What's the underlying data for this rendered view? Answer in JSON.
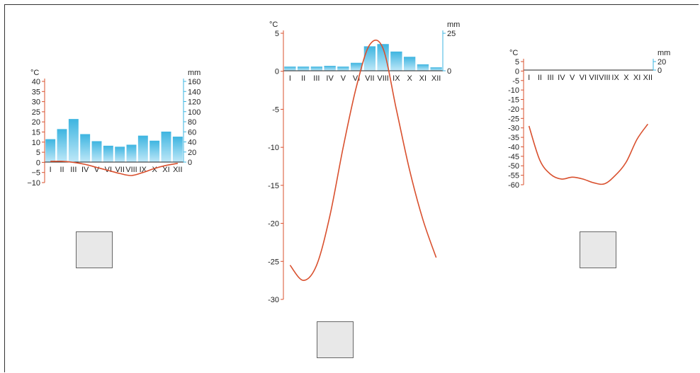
{
  "chart_data": [
    {
      "type": "bar+line",
      "temp_unit": "°C",
      "precip_unit": "mm",
      "months": [
        "I",
        "II",
        "III",
        "IV",
        "V",
        "VI",
        "VII",
        "VIII",
        "IX",
        "X",
        "XI",
        "XII"
      ],
      "temp_ticks": [
        40,
        35,
        30,
        25,
        20,
        15,
        10,
        5,
        0,
        -5,
        -10
      ],
      "temp_tick_labels": [
        "40",
        "35",
        "30",
        "25",
        "20",
        "15",
        "10",
        "5",
        "0",
        "−5",
        "−10"
      ],
      "precip_ticks": [
        160,
        140,
        120,
        100,
        80,
        60,
        40,
        20,
        0
      ],
      "precip_tick_labels": [
        "160",
        "140",
        "120",
        "100",
        "80",
        "60",
        "40",
        "20",
        "0"
      ],
      "ylim_temp": [
        -10,
        40
      ],
      "ylim_precip": [
        0,
        160
      ],
      "precip": [
        46,
        66,
        86,
        56,
        42,
        33,
        31,
        35,
        53,
        43,
        61,
        51
      ],
      "temp": [
        0.5,
        0.5,
        0,
        -1,
        -2.5,
        -4,
        -5.5,
        -6.5,
        -5,
        -3,
        -1.5,
        -0.5
      ],
      "temp_color": "#d9502e",
      "bar_color": "#3cb4e0"
    },
    {
      "type": "bar+line",
      "temp_unit": "°C",
      "precip_unit": "mm",
      "months": [
        "I",
        "II",
        "III",
        "IV",
        "V",
        "VI",
        "VII",
        "VIII",
        "IX",
        "X",
        "XI",
        "XII"
      ],
      "temp_ticks": [
        5,
        0,
        -5,
        -10,
        -15,
        -20,
        -25,
        -30
      ],
      "temp_tick_labels": [
        "5",
        "0",
        "-5",
        "-10",
        "-15",
        "-20",
        "-25",
        "-30"
      ],
      "precip_ticks": [
        25,
        0
      ],
      "precip_tick_labels": [
        "25",
        "0"
      ],
      "ylim_temp": [
        -30,
        5
      ],
      "ylim_precip": [
        0,
        25
      ],
      "precip": [
        3,
        3,
        3,
        3.5,
        3,
        5.5,
        16.5,
        18,
        13,
        9.5,
        4.5,
        2.5
      ],
      "temp": [
        -25.5,
        -27.5,
        -25.5,
        -19,
        -10,
        -2,
        3.5,
        3,
        -5,
        -13,
        -19.5,
        -24.5
      ],
      "temp_color": "#d9502e",
      "bar_color": "#3cb4e0"
    },
    {
      "type": "bar+line",
      "temp_unit": "°C",
      "precip_unit": "mm",
      "months": [
        "I",
        "II",
        "III",
        "IV",
        "V",
        "VI",
        "VII",
        "VIII",
        "IX",
        "X",
        "XI",
        "XII"
      ],
      "temp_ticks": [
        5,
        0,
        -5,
        -10,
        -15,
        -20,
        -25,
        -30,
        -35,
        -40,
        -45,
        -50,
        -55,
        -60
      ],
      "temp_tick_labels": [
        "5",
        "0",
        "-5",
        "-10",
        "-15",
        "-20",
        "-25",
        "-30",
        "-35",
        "-40",
        "-45",
        "-50",
        "-55",
        "-60"
      ],
      "precip_ticks": [
        20,
        0
      ],
      "precip_tick_labels": [
        "20",
        "0"
      ],
      "ylim_temp": [
        -60,
        5
      ],
      "ylim_precip": [
        0,
        20
      ],
      "precip": [
        0,
        0,
        0,
        0,
        0,
        0,
        0,
        0,
        0,
        0,
        0,
        0
      ],
      "temp": [
        -29,
        -47,
        -54.5,
        -57,
        -56,
        -57,
        -59,
        -59.5,
        -55,
        -48,
        -36,
        -28
      ],
      "temp_color": "#d9502e",
      "bar_color": "#3cb4e0"
    }
  ]
}
